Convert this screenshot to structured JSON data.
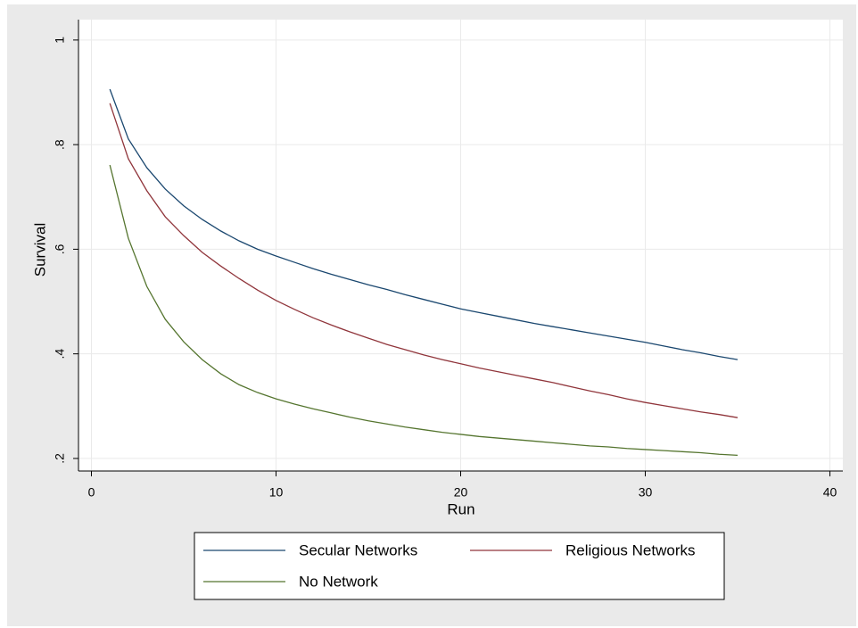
{
  "chart_data": {
    "type": "line",
    "x": [
      1,
      2,
      3,
      4,
      5,
      6,
      7,
      8,
      9,
      10,
      11,
      12,
      13,
      14,
      15,
      16,
      17,
      18,
      19,
      20,
      21,
      22,
      23,
      24,
      25,
      26,
      27,
      28,
      29,
      30,
      31,
      32,
      33,
      34,
      35
    ],
    "series": [
      {
        "name": "Secular Networks",
        "color": "#1a476f",
        "values": [
          0.906,
          0.811,
          0.756,
          0.715,
          0.683,
          0.657,
          0.635,
          0.616,
          0.6,
          0.587,
          0.575,
          0.563,
          0.552,
          0.542,
          0.532,
          0.523,
          0.513,
          0.504,
          0.495,
          0.486,
          0.479,
          0.472,
          0.465,
          0.458,
          0.452,
          0.446,
          0.44,
          0.434,
          0.428,
          0.422,
          0.415,
          0.408,
          0.402,
          0.395,
          0.389
        ]
      },
      {
        "name": "Religious Networks",
        "color": "#90353b",
        "values": [
          0.879,
          0.773,
          0.712,
          0.662,
          0.626,
          0.594,
          0.568,
          0.544,
          0.522,
          0.502,
          0.485,
          0.469,
          0.455,
          0.442,
          0.43,
          0.418,
          0.408,
          0.398,
          0.389,
          0.381,
          0.373,
          0.366,
          0.359,
          0.352,
          0.345,
          0.337,
          0.329,
          0.322,
          0.314,
          0.307,
          0.301,
          0.295,
          0.289,
          0.284,
          0.278
        ]
      },
      {
        "name": "No Network",
        "color": "#55752f",
        "values": [
          0.761,
          0.621,
          0.529,
          0.466,
          0.423,
          0.389,
          0.362,
          0.341,
          0.326,
          0.314,
          0.304,
          0.295,
          0.287,
          0.279,
          0.272,
          0.266,
          0.26,
          0.255,
          0.25,
          0.246,
          0.242,
          0.239,
          0.236,
          0.233,
          0.23,
          0.227,
          0.224,
          0.222,
          0.219,
          0.217,
          0.215,
          0.213,
          0.211,
          0.208,
          0.206
        ]
      }
    ],
    "x_label": "Run",
    "y_label": "Survival",
    "xlim": [
      -0.7,
      40.7
    ],
    "xticks": [
      0,
      10,
      20,
      30,
      40
    ],
    "ylim": [
      0.176,
      1.039
    ],
    "yticks": [
      {
        "value": 0.2,
        "label": ".2"
      },
      {
        "value": 0.4,
        "label": ".4"
      },
      {
        "value": 0.6,
        "label": ".6"
      },
      {
        "value": 0.8,
        "label": ".8"
      },
      1
    ],
    "grid": true,
    "legend": "bottom"
  }
}
